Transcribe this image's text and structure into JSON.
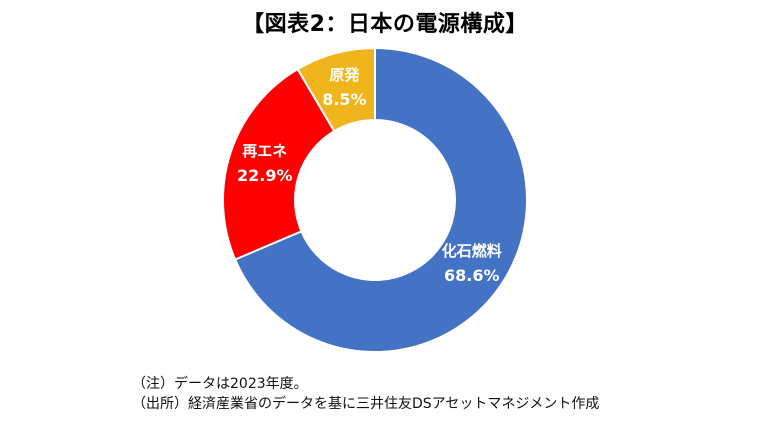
{
  "title": "【図表2：日本の電源構成】",
  "chart_data": {
    "type": "pie",
    "style": "donut",
    "slices": [
      {
        "label": "化石燃料",
        "value": 68.6,
        "value_label": "68.6%",
        "color": "#4472C4"
      },
      {
        "label": "再エネ",
        "value": 22.9,
        "value_label": "22.9%",
        "color": "#FF0000"
      },
      {
        "label": "原発",
        "value": 8.5,
        "value_label": "8.5%",
        "color": "#F0B41C"
      }
    ],
    "start_angle_deg": 0,
    "direction": "clockwise"
  },
  "notes": [
    "（注）データは2023年度。",
    "（出所）経済産業省のデータを基に三井住友DSアセットマネジメント作成"
  ]
}
